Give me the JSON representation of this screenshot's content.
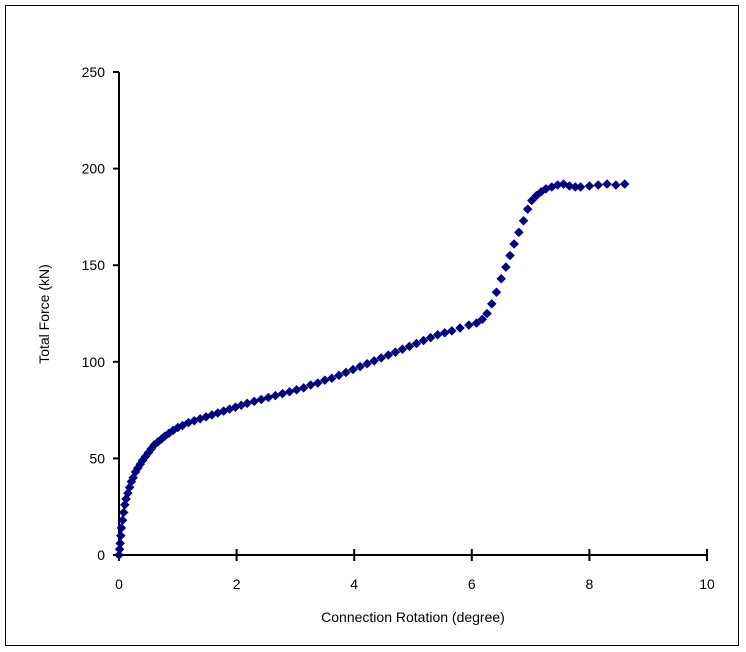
{
  "chart_data": {
    "type": "scatter",
    "title": "",
    "xlabel": "Connection Rotation (degree)",
    "ylabel": "Total Force (kN)",
    "xlim": [
      0,
      10
    ],
    "ylim": [
      0,
      250
    ],
    "xticks": [
      0,
      2,
      4,
      6,
      8,
      10
    ],
    "yticks": [
      0,
      50,
      100,
      150,
      200,
      250
    ],
    "grid": false,
    "legend": "none",
    "marker_color": "#000080",
    "marker": "diamond",
    "series": [
      {
        "x": [
          0.0,
          0.01,
          0.02,
          0.03,
          0.04,
          0.06,
          0.08,
          0.1,
          0.12,
          0.15,
          0.18,
          0.21,
          0.24,
          0.28,
          0.32,
          0.36,
          0.4,
          0.45,
          0.5,
          0.55,
          0.6,
          0.66,
          0.72,
          0.78,
          0.85,
          0.92,
          1.0,
          1.08,
          1.18,
          1.28,
          1.38,
          1.48,
          1.58,
          1.68,
          1.78,
          1.88,
          1.98,
          2.08,
          2.18,
          2.3,
          2.42,
          2.54,
          2.66,
          2.78,
          2.9,
          3.02,
          3.14,
          3.26,
          3.38,
          3.5,
          3.62,
          3.74,
          3.86,
          3.98,
          4.1,
          4.22,
          4.34,
          4.46,
          4.58,
          4.7,
          4.82,
          4.94,
          5.06,
          5.18,
          5.3,
          5.42,
          5.54,
          5.66,
          5.8,
          5.95,
          6.08,
          6.18,
          6.26,
          6.34,
          6.42,
          6.5,
          6.58,
          6.65,
          6.72,
          6.8,
          6.88,
          6.95,
          7.02,
          7.1,
          7.18,
          7.26,
          7.36,
          7.46,
          7.56,
          7.66,
          7.76,
          7.85,
          8.0,
          8.15,
          8.3,
          8.45,
          8.6
        ],
        "y": [
          0,
          3,
          6,
          10,
          14,
          18,
          22,
          26,
          29,
          32,
          35,
          38,
          40,
          43,
          45,
          47,
          49,
          51,
          53,
          55,
          57,
          58.5,
          60,
          61.5,
          63,
          64.5,
          66,
          67,
          68.5,
          69.5,
          70.5,
          71.5,
          72.5,
          73.5,
          74.5,
          75.5,
          76.5,
          77.5,
          78.5,
          79.5,
          80.5,
          81.5,
          82.5,
          83.5,
          84.5,
          85.5,
          86.5,
          88,
          89,
          90.5,
          91.5,
          93,
          94.5,
          96,
          97.5,
          99,
          100.5,
          102,
          103.5,
          105,
          106.5,
          108,
          109.5,
          111,
          112.5,
          114,
          115,
          116,
          117.5,
          119,
          120,
          122,
          125,
          130,
          136,
          143,
          149,
          155,
          161,
          167,
          173,
          179,
          183.5,
          186,
          188,
          189.5,
          190.5,
          191.5,
          192,
          191,
          190.5,
          190.5,
          191,
          191.5,
          192,
          191.5,
          192
        ]
      }
    ]
  }
}
